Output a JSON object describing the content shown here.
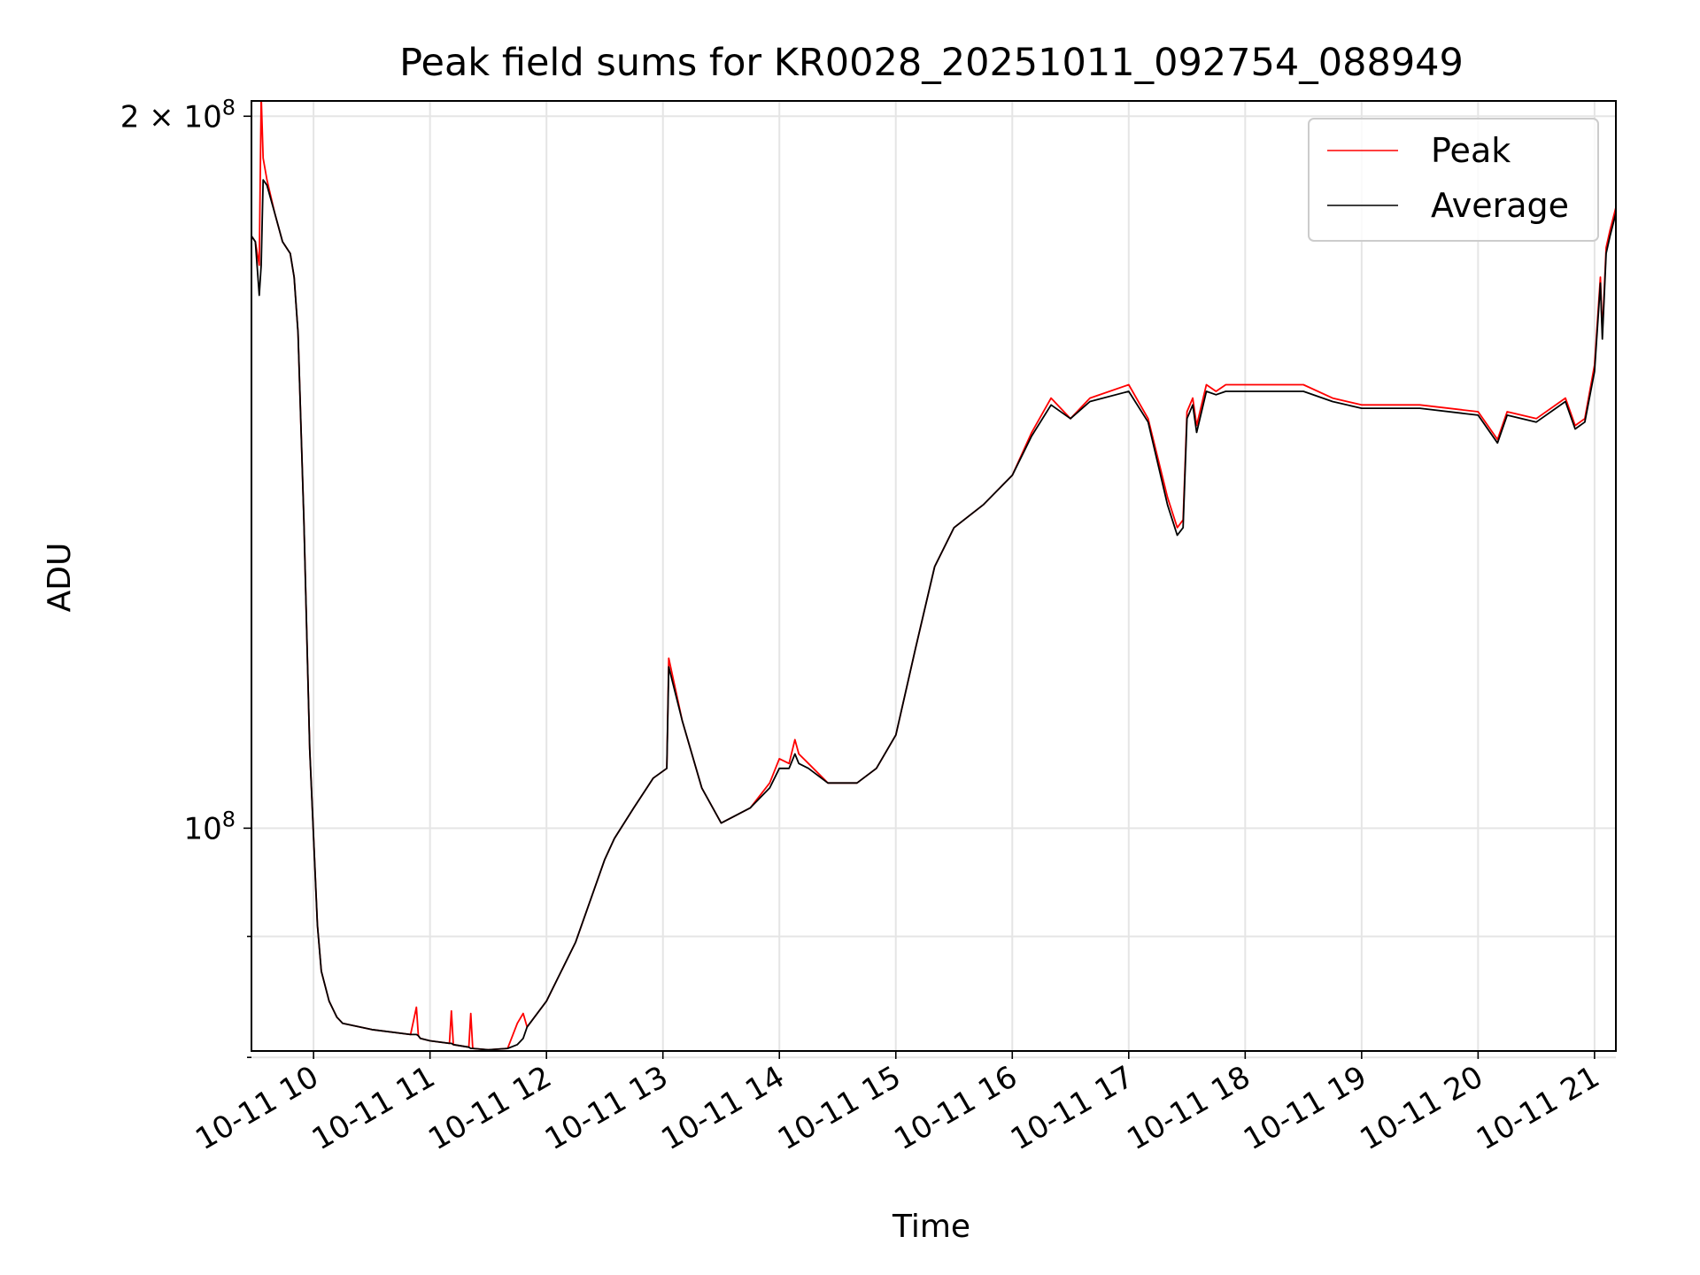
{
  "chart_data": {
    "type": "line",
    "title": "Peak field sums for KR0028_20251011_092754_088949",
    "xlabel": "Time",
    "ylabel": "ADU",
    "y_scale": "log",
    "grid": true,
    "legend_position": "top-right",
    "xlim": [
      "2025-10-11 09:28",
      "2025-10-11 21:11"
    ],
    "ylim": [
      80500000,
      203000000
    ],
    "x_ticks": [
      {
        "value": "2025-10-11 10:00",
        "label": "10-11 10"
      },
      {
        "value": "2025-10-11 11:00",
        "label": "10-11 11"
      },
      {
        "value": "2025-10-11 12:00",
        "label": "10-11 12"
      },
      {
        "value": "2025-10-11 13:00",
        "label": "10-11 13"
      },
      {
        "value": "2025-10-11 14:00",
        "label": "10-11 14"
      },
      {
        "value": "2025-10-11 15:00",
        "label": "10-11 15"
      },
      {
        "value": "2025-10-11 16:00",
        "label": "10-11 16"
      },
      {
        "value": "2025-10-11 17:00",
        "label": "10-11 17"
      },
      {
        "value": "2025-10-11 18:00",
        "label": "10-11 18"
      },
      {
        "value": "2025-10-11 19:00",
        "label": "10-11 19"
      },
      {
        "value": "2025-10-11 20:00",
        "label": "10-11 20"
      },
      {
        "value": "2025-10-11 21:00",
        "label": "10-11 21"
      }
    ],
    "y_major_ticks": [
      {
        "value": 100000000,
        "base": "10",
        "exp": "8"
      },
      {
        "value": 200000000,
        "base": "2 × 10",
        "exp": "8"
      }
    ],
    "y_minor_ticks": [
      90000000,
      80000000
    ],
    "series": [
      {
        "name": "Peak",
        "color": "#ff0000",
        "x": [
          "2025-10-11 09:28",
          "2025-10-11 09:30",
          "2025-10-11 09:32",
          "2025-10-11 09:33",
          "2025-10-11 09:34",
          "2025-10-11 09:36",
          "2025-10-11 09:40",
          "2025-10-11 09:44",
          "2025-10-11 09:48",
          "2025-10-11 09:50",
          "2025-10-11 09:52",
          "2025-10-11 09:55",
          "2025-10-11 09:58",
          "2025-10-11 10:02",
          "2025-10-11 10:04",
          "2025-10-11 10:08",
          "2025-10-11 10:12",
          "2025-10-11 10:15",
          "2025-10-11 10:30",
          "2025-10-11 10:50",
          "2025-10-11 10:53",
          "2025-10-11 10:54",
          "2025-10-11 10:55",
          "2025-10-11 11:00",
          "2025-10-11 11:10",
          "2025-10-11 11:11",
          "2025-10-11 11:12",
          "2025-10-11 11:20",
          "2025-10-11 11:21",
          "2025-10-11 11:22",
          "2025-10-11 11:30",
          "2025-10-11 11:40",
          "2025-10-11 11:45",
          "2025-10-11 11:48",
          "2025-10-11 11:50",
          "2025-10-11 12:00",
          "2025-10-11 12:15",
          "2025-10-11 12:30",
          "2025-10-11 12:35",
          "2025-10-11 12:45",
          "2025-10-11 12:55",
          "2025-10-11 13:02",
          "2025-10-11 13:03",
          "2025-10-11 13:10",
          "2025-10-11 13:20",
          "2025-10-11 13:30",
          "2025-10-11 13:45",
          "2025-10-11 13:55",
          "2025-10-11 14:00",
          "2025-10-11 14:05",
          "2025-10-11 14:08",
          "2025-10-11 14:10",
          "2025-10-11 14:15",
          "2025-10-11 14:25",
          "2025-10-11 14:40",
          "2025-10-11 14:50",
          "2025-10-11 15:00",
          "2025-10-11 15:10",
          "2025-10-11 15:20",
          "2025-10-11 15:30",
          "2025-10-11 15:45",
          "2025-10-11 16:00",
          "2025-10-11 16:10",
          "2025-10-11 16:20",
          "2025-10-11 16:30",
          "2025-10-11 16:40",
          "2025-10-11 17:00",
          "2025-10-11 17:10",
          "2025-10-11 17:20",
          "2025-10-11 17:25",
          "2025-10-11 17:28",
          "2025-10-11 17:30",
          "2025-10-11 17:33",
          "2025-10-11 17:35",
          "2025-10-11 17:40",
          "2025-10-11 17:45",
          "2025-10-11 17:50",
          "2025-10-11 18:00",
          "2025-10-11 18:15",
          "2025-10-11 18:30",
          "2025-10-11 18:45",
          "2025-10-11 19:00",
          "2025-10-11 19:30",
          "2025-10-11 20:00",
          "2025-10-11 20:10",
          "2025-10-11 20:15",
          "2025-10-11 20:30",
          "2025-10-11 20:45",
          "2025-10-11 20:50",
          "2025-10-11 20:55",
          "2025-10-11 21:00",
          "2025-10-11 21:03",
          "2025-10-11 21:04",
          "2025-10-11 21:06",
          "2025-10-11 21:08",
          "2025-10-11 21:11"
        ],
        "y": [
          178000000,
          177000000,
          173000000,
          204000000,
          192000000,
          188000000,
          182000000,
          177000000,
          175000000,
          171000000,
          162000000,
          135000000,
          108000000,
          91000000,
          87000000,
          84500000,
          83200000,
          82700000,
          82200000,
          81800000,
          84000000,
          81700000,
          81500000,
          81300000,
          81100000,
          83700000,
          81000000,
          80800000,
          83500000,
          80700000,
          80600000,
          80700000,
          82700000,
          83500000,
          82400000,
          84500000,
          89500000,
          97000000,
          99000000,
          102000000,
          105000000,
          106000000,
          118000000,
          111000000,
          104000000,
          100500000,
          102000000,
          104500000,
          107000000,
          106500000,
          109000000,
          107500000,
          106500000,
          104500000,
          104500000,
          106000000,
          109500000,
          119000000,
          129000000,
          134000000,
          137000000,
          141000000,
          147000000,
          152000000,
          149000000,
          152000000,
          154000000,
          149000000,
          138000000,
          134000000,
          135000000,
          150000000,
          152000000,
          148000000,
          154000000,
          153000000,
          154000000,
          154000000,
          154000000,
          154000000,
          152000000,
          151000000,
          151000000,
          150000000,
          146000000,
          150000000,
          149000000,
          152000000,
          148000000,
          149000000,
          157000000,
          171000000,
          162000000,
          176000000,
          179000000,
          183000000
        ]
      },
      {
        "name": "Average",
        "color": "#000000",
        "x": [
          "2025-10-11 09:28",
          "2025-10-11 09:30",
          "2025-10-11 09:32",
          "2025-10-11 09:33",
          "2025-10-11 09:34",
          "2025-10-11 09:36",
          "2025-10-11 09:40",
          "2025-10-11 09:44",
          "2025-10-11 09:48",
          "2025-10-11 09:50",
          "2025-10-11 09:52",
          "2025-10-11 09:55",
          "2025-10-11 09:58",
          "2025-10-11 10:02",
          "2025-10-11 10:04",
          "2025-10-11 10:08",
          "2025-10-11 10:12",
          "2025-10-11 10:15",
          "2025-10-11 10:30",
          "2025-10-11 10:50",
          "2025-10-11 10:53",
          "2025-10-11 10:54",
          "2025-10-11 10:55",
          "2025-10-11 11:00",
          "2025-10-11 11:10",
          "2025-10-11 11:11",
          "2025-10-11 11:12",
          "2025-10-11 11:20",
          "2025-10-11 11:21",
          "2025-10-11 11:22",
          "2025-10-11 11:30",
          "2025-10-11 11:40",
          "2025-10-11 11:45",
          "2025-10-11 11:48",
          "2025-10-11 11:50",
          "2025-10-11 12:00",
          "2025-10-11 12:15",
          "2025-10-11 12:30",
          "2025-10-11 12:35",
          "2025-10-11 12:45",
          "2025-10-11 12:55",
          "2025-10-11 13:02",
          "2025-10-11 13:03",
          "2025-10-11 13:10",
          "2025-10-11 13:20",
          "2025-10-11 13:30",
          "2025-10-11 13:45",
          "2025-10-11 13:55",
          "2025-10-11 14:00",
          "2025-10-11 14:05",
          "2025-10-11 14:08",
          "2025-10-11 14:10",
          "2025-10-11 14:15",
          "2025-10-11 14:25",
          "2025-10-11 14:40",
          "2025-10-11 14:50",
          "2025-10-11 15:00",
          "2025-10-11 15:10",
          "2025-10-11 15:20",
          "2025-10-11 15:30",
          "2025-10-11 15:45",
          "2025-10-11 16:00",
          "2025-10-11 16:10",
          "2025-10-11 16:20",
          "2025-10-11 16:30",
          "2025-10-11 16:40",
          "2025-10-11 17:00",
          "2025-10-11 17:10",
          "2025-10-11 17:20",
          "2025-10-11 17:25",
          "2025-10-11 17:28",
          "2025-10-11 17:30",
          "2025-10-11 17:33",
          "2025-10-11 17:35",
          "2025-10-11 17:40",
          "2025-10-11 17:45",
          "2025-10-11 17:50",
          "2025-10-11 18:00",
          "2025-10-11 18:15",
          "2025-10-11 18:30",
          "2025-10-11 18:45",
          "2025-10-11 19:00",
          "2025-10-11 19:30",
          "2025-10-11 20:00",
          "2025-10-11 20:10",
          "2025-10-11 20:15",
          "2025-10-11 20:30",
          "2025-10-11 20:45",
          "2025-10-11 20:50",
          "2025-10-11 20:55",
          "2025-10-11 21:00",
          "2025-10-11 21:03",
          "2025-10-11 21:04",
          "2025-10-11 21:06",
          "2025-10-11 21:08",
          "2025-10-11 21:11"
        ],
        "y": [
          178000000,
          177000000,
          168000000,
          173000000,
          188000000,
          187000000,
          182000000,
          177000000,
          175000000,
          171000000,
          162000000,
          135000000,
          108000000,
          91000000,
          87000000,
          84500000,
          83200000,
          82700000,
          82200000,
          81800000,
          81800000,
          81700000,
          81500000,
          81300000,
          81100000,
          81100000,
          81000000,
          80800000,
          80700000,
          80700000,
          80600000,
          80700000,
          81000000,
          81500000,
          82400000,
          84500000,
          89500000,
          97000000,
          99000000,
          102000000,
          105000000,
          106000000,
          117000000,
          111000000,
          104000000,
          100500000,
          102000000,
          104000000,
          106000000,
          106000000,
          107500000,
          106500000,
          106000000,
          104500000,
          104500000,
          106000000,
          109500000,
          119000000,
          129000000,
          134000000,
          137000000,
          141000000,
          146500000,
          151000000,
          149000000,
          151500000,
          153000000,
          148500000,
          137000000,
          133000000,
          134000000,
          149000000,
          151000000,
          147000000,
          153000000,
          152500000,
          153000000,
          153000000,
          153000000,
          153000000,
          151500000,
          150500000,
          150500000,
          149500000,
          145500000,
          149500000,
          148500000,
          151500000,
          147500000,
          148500000,
          156000000,
          170000000,
          161000000,
          175000000,
          178000000,
          182000000
        ]
      }
    ]
  }
}
